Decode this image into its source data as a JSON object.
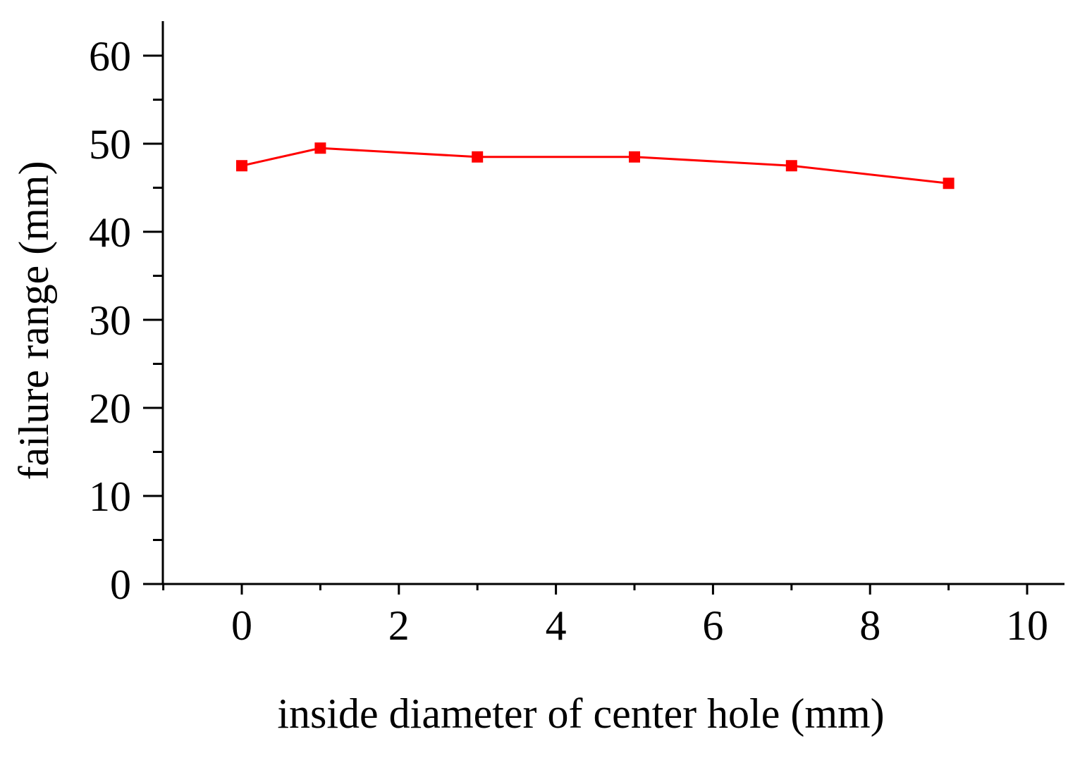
{
  "chart_data": {
    "type": "line",
    "xlabel": "inside diameter of center hole (mm)",
    "ylabel": "failure range (mm)",
    "xlim": [
      -1,
      10.5
    ],
    "ylim": [
      0,
      64
    ],
    "x_ticks": [
      0,
      2,
      4,
      6,
      8,
      10
    ],
    "x_tick_labels": [
      "0",
      "2",
      "4",
      "6",
      "8",
      "10"
    ],
    "x_minor_ticks": [
      -1,
      1,
      3,
      5,
      7,
      9
    ],
    "y_ticks": [
      0,
      10,
      20,
      30,
      40,
      50,
      60
    ],
    "y_tick_labels": [
      "0",
      "10",
      "20",
      "30",
      "40",
      "50",
      "60"
    ],
    "y_minor_ticks": [
      5,
      15,
      25,
      35,
      45,
      55
    ],
    "grid": false,
    "series": [
      {
        "color": "#ff0000",
        "marker": "square",
        "x": [
          0,
          1,
          3,
          5,
          7,
          9
        ],
        "y": [
          47.5,
          49.5,
          48.5,
          48.5,
          47.5,
          45.5
        ]
      }
    ]
  }
}
